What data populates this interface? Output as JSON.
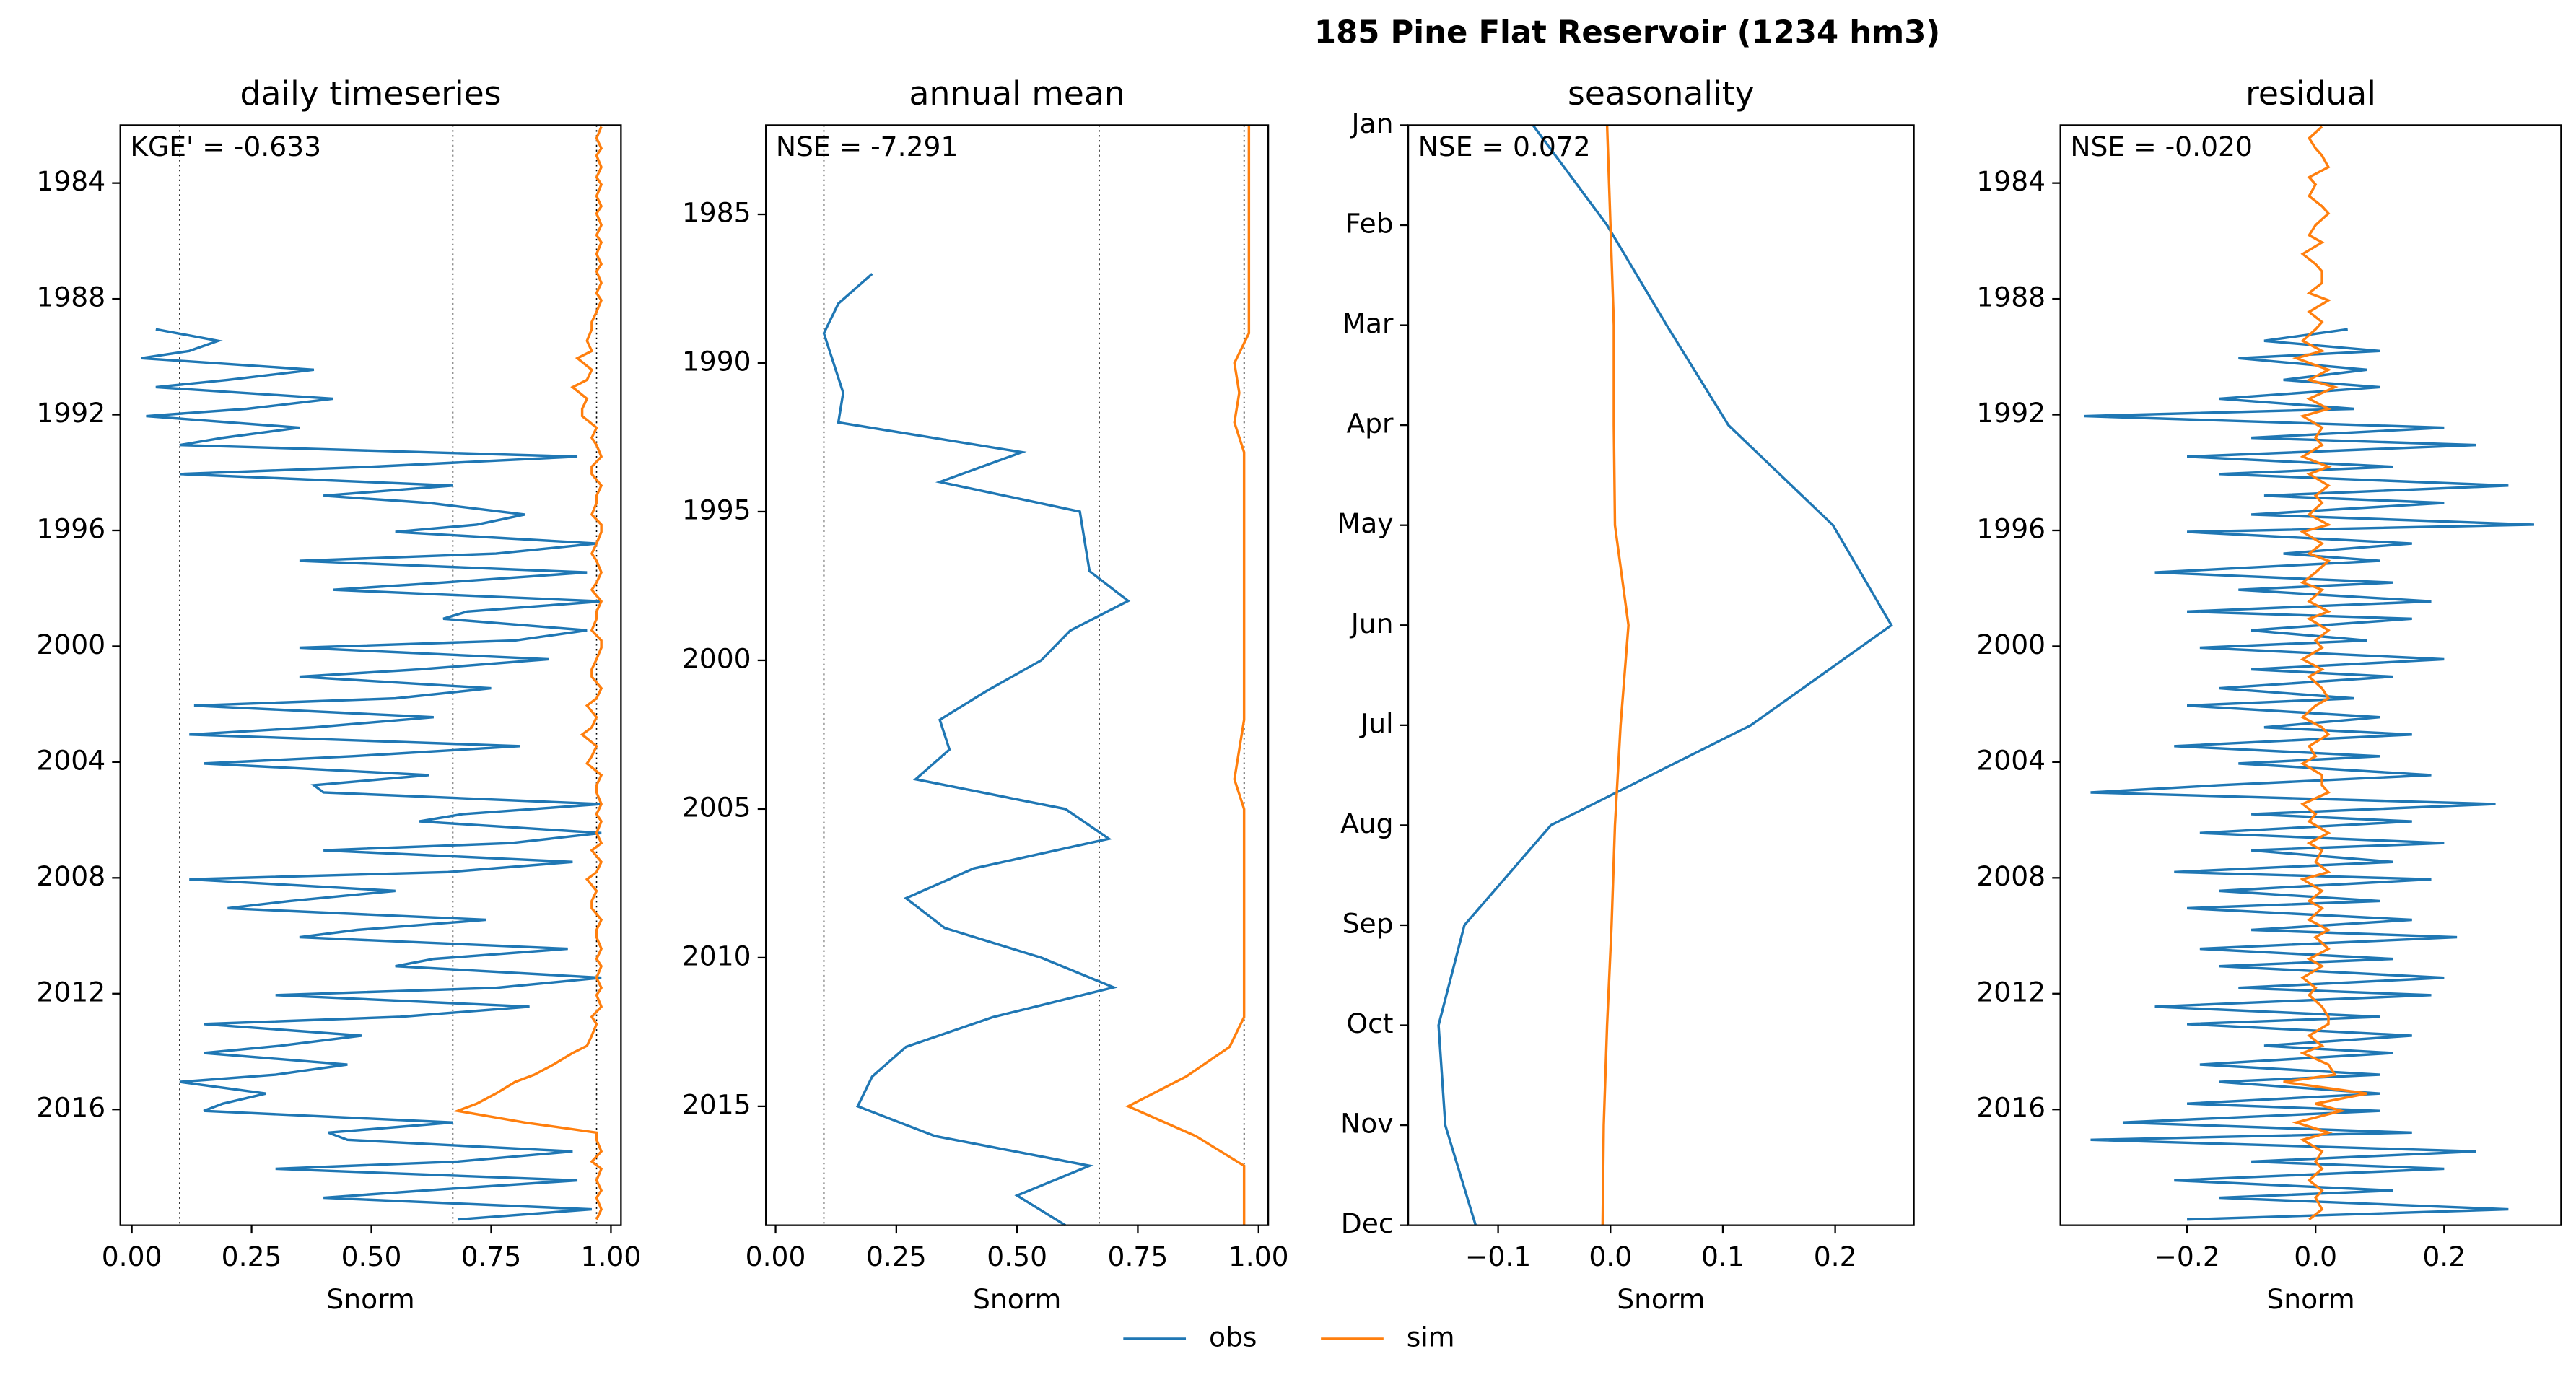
{
  "title": "185  Pine Flat Reservoir (1234 hm3)",
  "chart_data": [
    {
      "type": "line",
      "title": "daily timeseries",
      "annotation": "KGE' = -0.633",
      "xlabel": "Snorm",
      "xlim": [
        -0.024,
        1.021
      ],
      "xticks": [
        {
          "value": 0,
          "label": "0.00"
        },
        {
          "value": 0.25,
          "label": "0.25"
        },
        {
          "value": 0.5,
          "label": "0.50"
        },
        {
          "value": 0.75,
          "label": "0.75"
        },
        {
          "value": 1,
          "label": "1.00"
        }
      ],
      "ylim": [
        1982,
        2020
      ],
      "y_inverted": true,
      "yticks": [
        1984,
        1988,
        1992,
        1996,
        2000,
        2004,
        2008,
        2012,
        2016
      ],
      "vlines": [
        0.1,
        0.67,
        0.97
      ],
      "y": [
        1982.05,
        1982.45,
        1982.8,
        1983.05,
        1983.45,
        1983.8,
        1984.05,
        1984.45,
        1984.8,
        1985.05,
        1985.45,
        1985.8,
        1986.05,
        1986.45,
        1986.8,
        1987.05,
        1987.45,
        1987.8,
        1988.05,
        1988.45,
        1988.8,
        1989.05,
        1989.45,
        1989.8,
        1990.05,
        1990.45,
        1990.8,
        1991.05,
        1991.45,
        1991.8,
        1992.05,
        1992.45,
        1992.8,
        1993.05,
        1993.45,
        1993.8,
        1994.05,
        1994.45,
        1994.8,
        1995.05,
        1995.45,
        1995.8,
        1996.05,
        1996.45,
        1996.8,
        1997.05,
        1997.45,
        1997.8,
        1998.05,
        1998.45,
        1998.8,
        1999.05,
        1999.45,
        1999.8,
        2000.05,
        2000.45,
        2000.8,
        2001.05,
        2001.45,
        2001.8,
        2002.05,
        2002.45,
        2002.8,
        2003.05,
        2003.45,
        2003.8,
        2004.05,
        2004.45,
        2004.8,
        2005.05,
        2005.45,
        2005.8,
        2006.05,
        2006.45,
        2006.8,
        2007.05,
        2007.45,
        2007.8,
        2008.05,
        2008.45,
        2008.8,
        2009.05,
        2009.45,
        2009.8,
        2010.05,
        2010.45,
        2010.8,
        2011.05,
        2011.45,
        2011.8,
        2012.05,
        2012.45,
        2012.8,
        2013.05,
        2013.45,
        2013.8,
        2014.05,
        2014.45,
        2014.8,
        2015.05,
        2015.45,
        2015.8,
        2016.05,
        2016.45,
        2016.8,
        2017.05,
        2017.45,
        2017.8,
        2018.05,
        2018.45,
        2018.8,
        2019.05,
        2019.45,
        2019.8
      ],
      "series": [
        {
          "name": "obs",
          "color": "#1f77b4",
          "values": [
            null,
            null,
            null,
            null,
            null,
            null,
            null,
            null,
            null,
            null,
            null,
            null,
            null,
            null,
            null,
            null,
            null,
            null,
            null,
            null,
            null,
            0.05,
            0.18,
            0.12,
            0.02,
            0.38,
            0.2,
            0.05,
            0.42,
            0.24,
            0.03,
            0.35,
            0.19,
            0.1,
            0.93,
            0.5,
            0.1,
            0.67,
            0.4,
            0.62,
            0.82,
            0.72,
            0.55,
            0.97,
            0.76,
            0.35,
            0.95,
            0.65,
            0.42,
            0.98,
            0.7,
            0.65,
            0.95,
            0.8,
            0.35,
            0.87,
            0.6,
            0.35,
            0.75,
            0.55,
            0.13,
            0.63,
            0.38,
            0.12,
            0.81,
            0.46,
            0.15,
            0.62,
            0.38,
            0.4,
            0.98,
            0.69,
            0.6,
            0.98,
            0.79,
            0.4,
            0.92,
            0.66,
            0.12,
            0.55,
            0.33,
            0.2,
            0.74,
            0.47,
            0.35,
            0.91,
            0.63,
            0.55,
            0.98,
            0.76,
            0.3,
            0.83,
            0.56,
            0.15,
            0.48,
            0.31,
            0.15,
            0.45,
            0.3,
            0.1,
            0.28,
            0.19,
            0.15,
            0.67,
            0.41,
            0.45,
            0.92,
            0.68,
            0.3,
            0.93,
            0.61,
            0.4,
            0.96,
            0.68
          ]
        },
        {
          "name": "sim",
          "color": "#ff7f0e",
          "values": [
            0.98,
            0.97,
            0.98,
            0.97,
            0.98,
            0.97,
            0.98,
            0.97,
            0.98,
            0.97,
            0.98,
            0.97,
            0.98,
            0.97,
            0.98,
            0.97,
            0.98,
            0.97,
            0.98,
            0.97,
            0.96,
            0.96,
            0.95,
            0.96,
            0.93,
            0.96,
            0.95,
            0.92,
            0.95,
            0.94,
            0.94,
            0.97,
            0.96,
            0.97,
            0.98,
            0.96,
            0.96,
            0.98,
            0.97,
            0.97,
            0.96,
            0.98,
            0.98,
            0.97,
            0.96,
            0.97,
            0.98,
            0.97,
            0.96,
            0.98,
            0.97,
            0.97,
            0.96,
            0.98,
            0.98,
            0.97,
            0.96,
            0.96,
            0.98,
            0.97,
            0.95,
            0.97,
            0.96,
            0.94,
            0.97,
            0.96,
            0.95,
            0.98,
            0.97,
            0.97,
            0.98,
            0.97,
            0.98,
            0.97,
            0.98,
            0.96,
            0.98,
            0.97,
            0.95,
            0.97,
            0.96,
            0.96,
            0.98,
            0.97,
            0.97,
            0.98,
            0.97,
            0.98,
            0.97,
            0.98,
            0.97,
            0.98,
            0.96,
            0.97,
            0.96,
            0.95,
            0.92,
            0.88,
            0.84,
            0.8,
            0.76,
            0.72,
            0.68,
            0.82,
            0.97,
            0.97,
            0.98,
            0.96,
            0.98,
            0.97,
            0.98,
            0.97,
            0.98,
            0.97
          ]
        }
      ]
    },
    {
      "type": "line",
      "title": "annual mean",
      "annotation": "NSE = -7.291",
      "xlabel": "Snorm",
      "xlim": [
        -0.02,
        1.02
      ],
      "xticks": [
        {
          "value": 0,
          "label": "0.00"
        },
        {
          "value": 0.25,
          "label": "0.25"
        },
        {
          "value": 0.5,
          "label": "0.50"
        },
        {
          "value": 0.75,
          "label": "0.75"
        },
        {
          "value": 1,
          "label": "1.00"
        }
      ],
      "ylim": [
        1982,
        2019
      ],
      "y_inverted": true,
      "yticks": [
        1985,
        1990,
        1995,
        2000,
        2005,
        2010,
        2015
      ],
      "vlines": [
        0.1,
        0.67,
        0.97
      ],
      "y": [
        1982,
        1983,
        1984,
        1985,
        1986,
        1987,
        1988,
        1989,
        1990,
        1991,
        1992,
        1993,
        1994,
        1995,
        1996,
        1997,
        1998,
        1999,
        2000,
        2001,
        2002,
        2003,
        2004,
        2005,
        2006,
        2007,
        2008,
        2009,
        2010,
        2011,
        2012,
        2013,
        2014,
        2015,
        2016,
        2017,
        2018,
        2019
      ],
      "series": [
        {
          "name": "obs",
          "color": "#1f77b4",
          "values": [
            null,
            null,
            null,
            null,
            null,
            0.2,
            0.13,
            0.1,
            0.12,
            0.14,
            0.13,
            0.51,
            0.34,
            0.63,
            0.64,
            0.65,
            0.73,
            0.61,
            0.55,
            0.44,
            0.34,
            0.36,
            0.29,
            0.6,
            0.69,
            0.41,
            0.27,
            0.35,
            0.55,
            0.7,
            0.45,
            0.27,
            0.2,
            0.17,
            0.33,
            0.65,
            0.5,
            0.6
          ]
        },
        {
          "name": "sim",
          "color": "#ff7f0e",
          "values": [
            0.98,
            0.98,
            0.98,
            0.98,
            0.98,
            0.98,
            0.98,
            0.98,
            0.95,
            0.96,
            0.95,
            0.97,
            0.97,
            0.97,
            0.97,
            0.97,
            0.97,
            0.97,
            0.97,
            0.97,
            0.97,
            0.96,
            0.95,
            0.97,
            0.97,
            0.97,
            0.97,
            0.97,
            0.97,
            0.97,
            0.97,
            0.94,
            0.85,
            0.73,
            0.87,
            0.97,
            0.97,
            0.97
          ]
        }
      ]
    },
    {
      "type": "line",
      "title": "seasonality",
      "annotation": "NSE = 0.072",
      "xlabel": "Snorm",
      "xlim": [
        -0.18,
        0.27
      ],
      "xticks": [
        {
          "value": -0.1,
          "label": "−0.1"
        },
        {
          "value": 0,
          "label": "0.0"
        },
        0.1,
        0.2
      ],
      "categories": [
        "Jan",
        "Feb",
        "Mar",
        "Apr",
        "May",
        "Jun",
        "Jul",
        "Aug",
        "Sep",
        "Oct",
        "Nov",
        "Dec"
      ],
      "series": [
        {
          "name": "obs",
          "color": "#1f77b4",
          "values": [
            -0.069,
            -0.003,
            0.05,
            0.105,
            0.198,
            0.25,
            0.125,
            -0.053,
            -0.13,
            -0.153,
            -0.147,
            -0.12
          ]
        },
        {
          "name": "sim",
          "color": "#ff7f0e",
          "values": [
            -0.003,
            0,
            0.003,
            0.003,
            0.004,
            0.016,
            0.009,
            0.004,
            0.001,
            -0.003,
            -0.006,
            -0.007
          ]
        }
      ]
    },
    {
      "type": "line",
      "title": "residual",
      "annotation": "NSE = -0.020",
      "xlabel": "Snorm",
      "xlim": [
        -0.397,
        0.382
      ],
      "xticks": [
        {
          "value": -0.2,
          "label": "−0.2"
        },
        {
          "value": 0,
          "label": "0.0"
        },
        0.2
      ],
      "ylim": [
        1982,
        2020
      ],
      "y_inverted": true,
      "yticks": [
        1984,
        1988,
        1992,
        1996,
        2000,
        2004,
        2008,
        2012,
        2016
      ],
      "y": [
        1982.05,
        1982.45,
        1982.8,
        1983.05,
        1983.45,
        1983.8,
        1984.05,
        1984.45,
        1984.8,
        1985.05,
        1985.45,
        1985.8,
        1986.05,
        1986.45,
        1986.8,
        1987.05,
        1987.45,
        1987.8,
        1988.05,
        1988.45,
        1988.8,
        1989.05,
        1989.45,
        1989.8,
        1990.05,
        1990.45,
        1990.8,
        1991.05,
        1991.45,
        1991.8,
        1992.05,
        1992.45,
        1992.8,
        1993.05,
        1993.45,
        1993.8,
        1994.05,
        1994.45,
        1994.8,
        1995.05,
        1995.45,
        1995.8,
        1996.05,
        1996.45,
        1996.8,
        1997.05,
        1997.45,
        1997.8,
        1998.05,
        1998.45,
        1998.8,
        1999.05,
        1999.45,
        1999.8,
        2000.05,
        2000.45,
        2000.8,
        2001.05,
        2001.45,
        2001.8,
        2002.05,
        2002.45,
        2002.8,
        2003.05,
        2003.45,
        2003.8,
        2004.05,
        2004.45,
        2004.8,
        2005.05,
        2005.45,
        2005.8,
        2006.05,
        2006.45,
        2006.8,
        2007.05,
        2007.45,
        2007.8,
        2008.05,
        2008.45,
        2008.8,
        2009.05,
        2009.45,
        2009.8,
        2010.05,
        2010.45,
        2010.8,
        2011.05,
        2011.45,
        2011.8,
        2012.05,
        2012.45,
        2012.8,
        2013.05,
        2013.45,
        2013.8,
        2014.05,
        2014.45,
        2014.8,
        2015.05,
        2015.45,
        2015.8,
        2016.05,
        2016.45,
        2016.8,
        2017.05,
        2017.45,
        2017.8,
        2018.05,
        2018.45,
        2018.8,
        2019.05,
        2019.45,
        2019.8
      ],
      "series": [
        {
          "name": "obs",
          "color": "#1f77b4",
          "values": [
            null,
            null,
            null,
            null,
            null,
            null,
            null,
            null,
            null,
            null,
            null,
            null,
            null,
            null,
            null,
            null,
            null,
            null,
            null,
            null,
            null,
            0.05,
            -0.08,
            0.1,
            -0.12,
            0.08,
            -0.05,
            0.1,
            -0.15,
            0.06,
            -0.36,
            0.2,
            -0.1,
            0.25,
            -0.2,
            0.12,
            -0.15,
            0.3,
            -0.08,
            0.2,
            -0.1,
            0.34,
            -0.2,
            0.15,
            -0.05,
            0.1,
            -0.25,
            0.12,
            -0.12,
            0.18,
            -0.2,
            0.15,
            -0.1,
            0.08,
            -0.18,
            0.2,
            -0.1,
            0.12,
            -0.15,
            0.06,
            -0.2,
            0.1,
            -0.08,
            0.15,
            -0.22,
            0.1,
            -0.12,
            0.18,
            -0.15,
            -0.35,
            0.28,
            -0.1,
            0.15,
            -0.18,
            0.2,
            -0.1,
            0.12,
            -0.22,
            0.18,
            -0.15,
            0.1,
            -0.2,
            0.15,
            -0.1,
            0.22,
            -0.18,
            0.12,
            -0.15,
            0.2,
            -0.12,
            0.18,
            -0.25,
            0.1,
            -0.2,
            0.15,
            -0.08,
            0.12,
            -0.18,
            0.1,
            -0.15,
            0.1,
            -0.2,
            0.1,
            -0.3,
            0.15,
            -0.35,
            0.25,
            -0.1,
            0.2,
            -0.22,
            0.12,
            -0.15,
            0.3,
            -0.2
          ]
        },
        {
          "name": "sim",
          "color": "#ff7f0e",
          "values": [
            0.01,
            -0.01,
            0,
            0.01,
            0.02,
            -0.01,
            0,
            -0.01,
            0.01,
            0.02,
            0,
            -0.01,
            0.01,
            -0.02,
            0,
            0.01,
            0.01,
            -0.01,
            0.02,
            -0.01,
            0.01,
            0,
            -0.02,
            0.01,
            -0.03,
            0.02,
            -0.01,
            0.03,
            -0.01,
            0.02,
            -0.02,
            0.01,
            0,
            0.01,
            -0.02,
            0.02,
            -0.01,
            0.02,
            0,
            0.01,
            -0.01,
            0.02,
            -0.02,
            0.01,
            -0.01,
            0.02,
            0,
            -0.02,
            0.01,
            -0.01,
            0.02,
            -0.01,
            0.02,
            0,
            0.01,
            -0.02,
            0.01,
            -0.01,
            0.01,
            0.02,
            0,
            -0.02,
            0.01,
            0.02,
            -0.01,
            0,
            -0.02,
            0.01,
            0.01,
            0.02,
            -0.02,
            0,
            -0.01,
            0.02,
            -0.01,
            0.01,
            0,
            0.02,
            -0.02,
            0.01,
            -0.01,
            0.01,
            -0.01,
            0.02,
            0,
            0.02,
            -0.01,
            0.01,
            -0.02,
            0,
            -0.01,
            0.01,
            0.02,
            0.02,
            -0.01,
            0.01,
            -0.02,
            0.02,
            0.03,
            -0.05,
            0.08,
            0,
            0.04,
            -0.03,
            0.02,
            -0.02,
            0.01,
            0,
            0.01,
            -0.01,
            0.01,
            0,
            0.01,
            -0.01
          ]
        }
      ]
    }
  ]
}
